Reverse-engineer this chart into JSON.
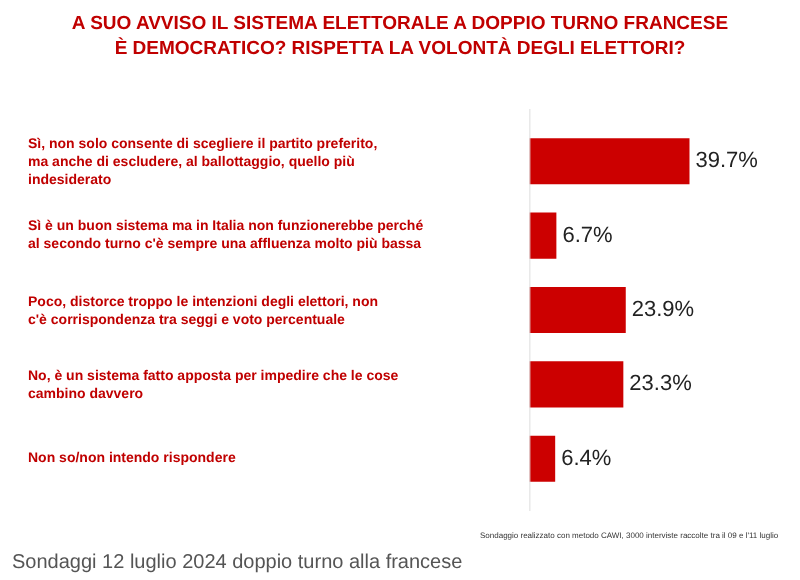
{
  "chart_data": {
    "type": "bar",
    "orientation": "horizontal",
    "title": "A SUO AVVISO IL SISTEMA ELETTORALE A DOPPIO TURNO FRANCESE È DEMOCRATICO? RISPETTA LA VOLONTÀ DEGLI ELETTORI?",
    "categories": [
      "Sì, non solo consente di scegliere il partito preferito, ma anche di escludere, al ballottaggio, quello più indesiderato",
      "Sì è un buon sistema ma in Italia non funzionerebbe perché al secondo turno c'è sempre una affluenza molto più bassa",
      "Poco, distorce troppo le intenzioni degli elettori, non c'è corrispondenza tra seggi e voto percentuale",
      "No, è un sistema fatto apposta per impedire che le cose cambino davvero",
      "Non so/non intendo rispondere"
    ],
    "values": [
      39.7,
      6.7,
      23.9,
      23.3,
      6.4
    ],
    "value_labels": [
      "39.7%",
      "6.7%",
      "23.9%",
      "23.3%",
      "6.4%"
    ],
    "color": "#cc0000",
    "tick_labels": "y",
    "legend": false,
    "annotations": [
      "Sondaggio realizzato con metodo CAWI, 3000 interviste raccolte tra il 09 e l'11 luglio",
      "Sondaggi 12 luglio 2024 doppio turno alla francese"
    ]
  }
}
